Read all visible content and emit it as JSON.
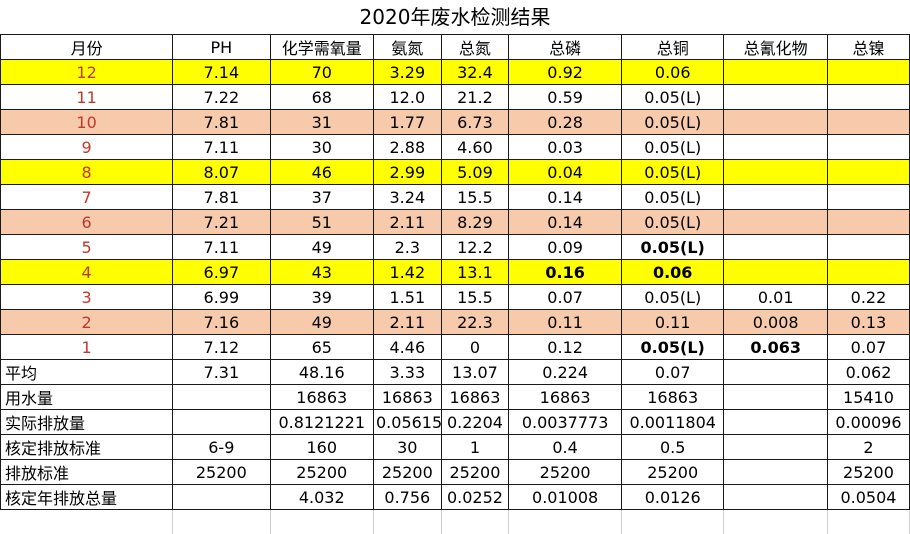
{
  "title": "2020年废水检测结果",
  "headers": [
    "月份",
    "PH",
    "化学需氧量",
    "氨氮",
    "总氮",
    "总磷",
    "总铜",
    "总氰化物",
    "总镍"
  ],
  "rows": [
    {
      "month": "12",
      "tint": "yellow",
      "values": [
        "7.14",
        "70",
        "3.29",
        "32.4",
        "0.92",
        "0.06",
        "",
        ""
      ],
      "bold": []
    },
    {
      "month": "11",
      "tint": "none",
      "values": [
        "7.22",
        "68",
        "12.0",
        "21.2",
        "0.59",
        "0.05(L)",
        "",
        ""
      ],
      "bold": []
    },
    {
      "month": "10",
      "tint": "peach",
      "values": [
        "7.81",
        "31",
        "1.77",
        "6.73",
        "0.28",
        "0.05(L)",
        "",
        ""
      ],
      "bold": []
    },
    {
      "month": "9",
      "tint": "none",
      "values": [
        "7.11",
        "30",
        "2.88",
        "4.60",
        "0.03",
        "0.05(L)",
        "",
        ""
      ],
      "bold": []
    },
    {
      "month": "8",
      "tint": "yellow",
      "values": [
        "8.07",
        "46",
        "2.99",
        "5.09",
        "0.04",
        "0.05(L)",
        "",
        ""
      ],
      "bold": []
    },
    {
      "month": "7",
      "tint": "none",
      "values": [
        "7.81",
        "37",
        "3.24",
        "15.5",
        "0.14",
        "0.05(L)",
        "",
        ""
      ],
      "bold": []
    },
    {
      "month": "6",
      "tint": "peach",
      "values": [
        "7.21",
        "51",
        "2.11",
        "8.29",
        "0.14",
        "0.05(L)",
        "",
        ""
      ],
      "bold": []
    },
    {
      "month": "5",
      "tint": "none",
      "values": [
        "7.11",
        "49",
        "2.3",
        "12.2",
        "0.09",
        "0.05(L)",
        "",
        ""
      ],
      "bold": [
        5
      ]
    },
    {
      "month": "4",
      "tint": "yellow",
      "values": [
        "6.97",
        "43",
        "1.42",
        "13.1",
        "0.16",
        "0.06",
        "",
        ""
      ],
      "bold": [
        4,
        5
      ]
    },
    {
      "month": "3",
      "tint": "none",
      "values": [
        "6.99",
        "39",
        "1.51",
        "15.5",
        "0.07",
        "0.05(L)",
        "0.01",
        "0.22"
      ],
      "bold": []
    },
    {
      "month": "2",
      "tint": "peach",
      "values": [
        "7.16",
        "49",
        "2.11",
        "22.3",
        "0.11",
        "0.11",
        "0.008",
        "0.13"
      ],
      "bold": []
    },
    {
      "month": "1",
      "tint": "none",
      "values": [
        "7.12",
        "65",
        "4.46",
        "0",
        "0.12",
        "0.05(L)",
        "0.063",
        "0.07"
      ],
      "bold": [
        5,
        6
      ]
    }
  ],
  "summary": [
    {
      "label": "平均",
      "values": [
        "7.31",
        "48.16",
        "3.33",
        "13.07",
        "0.224",
        "0.07",
        "",
        "0.062"
      ]
    },
    {
      "label": "用水量",
      "values": [
        "",
        "16863",
        "16863",
        "16863",
        "16863",
        "16863",
        "",
        "15410"
      ]
    },
    {
      "label": "实际排放量",
      "values": [
        "",
        "0.8121221",
        "0.05615",
        "0.2204",
        "0.0037773",
        "0.0011804",
        "",
        "0.00096"
      ]
    },
    {
      "label": "核定排放标准",
      "values": [
        "6-9",
        "160",
        "30",
        "1",
        "0.4",
        "0.5",
        "",
        "2"
      ]
    },
    {
      "label": "排放标准",
      "values": [
        "25200",
        "25200",
        "25200",
        "25200",
        "25200",
        "25200",
        "",
        "25200"
      ]
    },
    {
      "label": "核定年排放总量",
      "values": [
        "",
        "4.032",
        "0.756",
        "0.0252",
        "0.01008",
        "0.0126",
        "",
        "0.0504"
      ]
    }
  ],
  "colors": {
    "yellow": "#ffff00",
    "peach": "#f7caac",
    "month_text": "#c0392b"
  }
}
